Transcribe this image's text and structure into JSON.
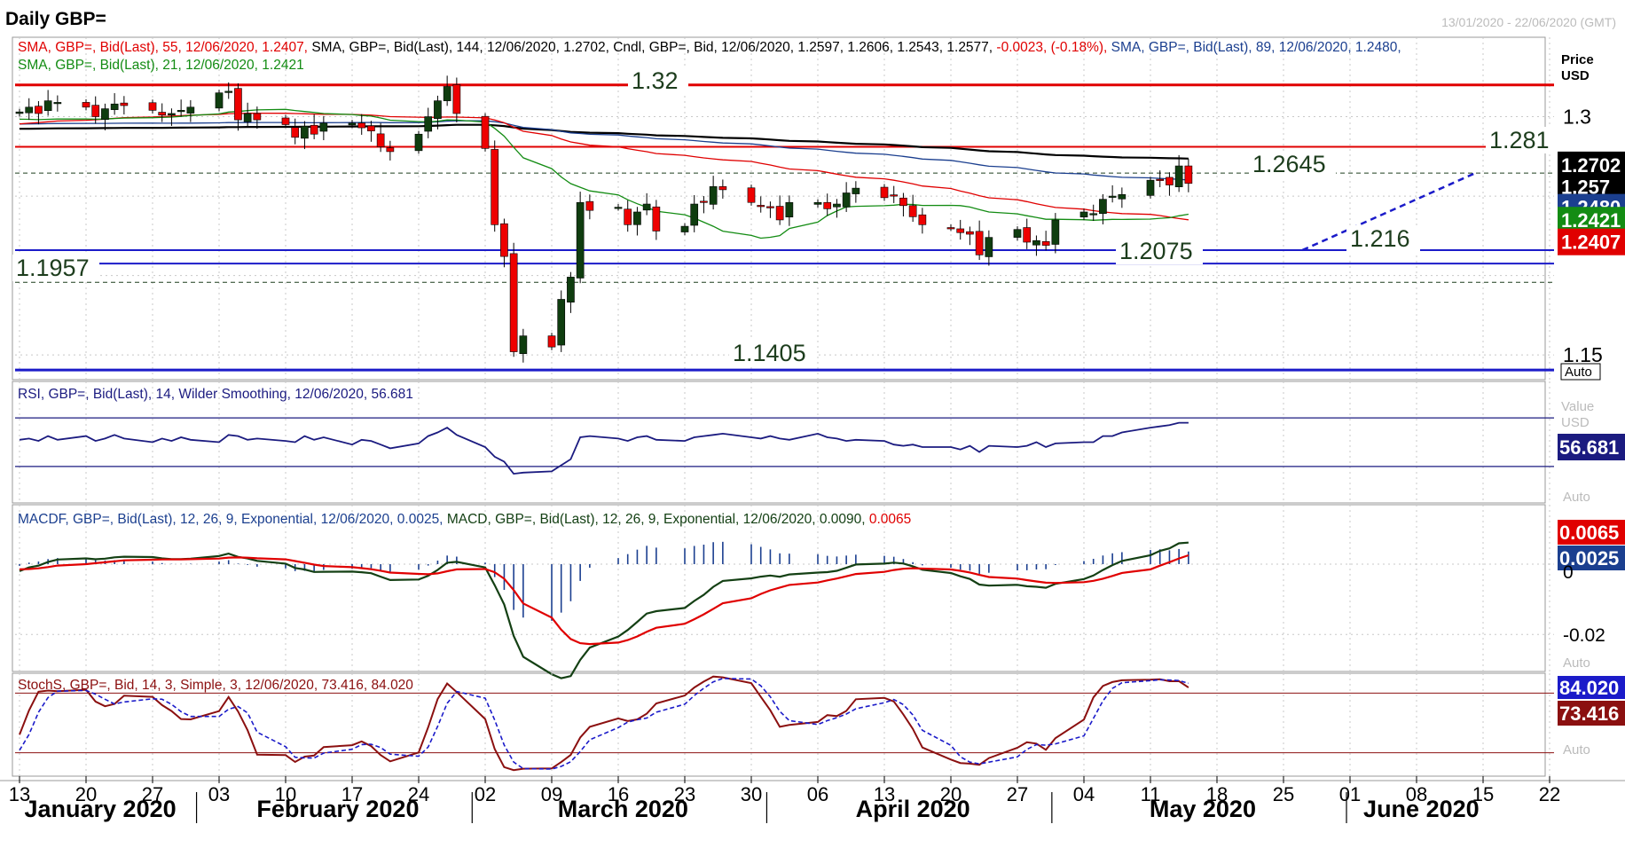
{
  "header": {
    "title": "Daily GBP=",
    "date_range": "13/01/2020 - 22/06/2020 (GMT)"
  },
  "price_panel": {
    "legend_line1": [
      {
        "text": "SMA, GBP=, Bid(Last),  55, 12/06/2020, 1.2407, ",
        "color": "#e00000"
      },
      {
        "text": "SMA, GBP=, Bid(Last),  144, 12/06/2020, 1.2702, ",
        "color": "#000000"
      },
      {
        "text": "Cndl, GBP=, Bid,  12/06/2020, 1.2597, 1.2606, 1.2543, 1.2577, ",
        "color": "#000000"
      },
      {
        "text": "-0.0023, (-0.18%), ",
        "color": "#e00000"
      },
      {
        "text": "SMA, GBP=, Bid(Last),  89, 12/06/2020, 1.2480, ",
        "color": "#1b3f8f"
      }
    ],
    "legend_line2": [
      {
        "text": "SMA, GBP=, Bid(Last),  21, 12/06/2020, 1.2421",
        "color": "#138c13"
      }
    ],
    "axis_header": {
      "line1": "Price",
      "line2": "USD"
    },
    "auto_label": "Auto",
    "level_labels": {
      "r132": "1.32",
      "r1281": "1.281",
      "r12645": "1.2645",
      "s1216": "1.216",
      "s12075": "1.2075",
      "s11957": "1.1957",
      "s11405": "1.1405"
    },
    "badges": {
      "sma144": {
        "text": "1.2702",
        "bg": "#000000"
      },
      "close": {
        "text": "1.257",
        "bg": "#000000"
      },
      "sma89": {
        "text": "1.2480",
        "bg": "#1b3f8f"
      },
      "sma21": {
        "text": "1.2421",
        "bg": "#138c13"
      },
      "sma55": {
        "text": "1.2407",
        "bg": "#e00000"
      }
    }
  },
  "rsi_panel": {
    "legend": "RSI, GBP=, Bid(Last),  14, Wilder Smoothing, 12/06/2020, 56.681",
    "axis_header": {
      "line1": "Value",
      "line2": "USD"
    },
    "badge": "56.681",
    "auto_label": "Auto"
  },
  "macd_panel": {
    "legend": [
      {
        "text": "MACDF, GBP=, Bid(Last),  12, 26, 9, Exponential, 12/06/2020, 0.0025, ",
        "color": "#1b3f8f"
      },
      {
        "text": "MACD, GBP=, Bid(Last),  12, 26, 9, Exponential, 12/06/2020, 0.0090, ",
        "color": "#144014"
      },
      {
        "text": "0.0065",
        "color": "#e00000"
      }
    ],
    "badges": {
      "signal": "0.0065",
      "hist": "0.0025"
    },
    "auto_label": "Auto"
  },
  "stoch_panel": {
    "legend": "StochS, GBP=, Bid,  14, 3, Simple, 3, 12/06/2020, 73.416, 84.020",
    "badges": {
      "d": "84.020",
      "k": "73.416"
    },
    "auto_label": "Auto"
  },
  "x_axis": {
    "day_ticks": [
      "13",
      "20",
      "27",
      "03",
      "10",
      "17",
      "24",
      "02",
      "09",
      "16",
      "23",
      "30",
      "06",
      "13",
      "20",
      "27",
      "04",
      "11",
      "18",
      "25",
      "01",
      "08",
      "15",
      "22"
    ],
    "months": [
      "January 2020",
      "February 2020",
      "March 2020",
      "April 2020",
      "May 2020",
      "June 2020"
    ]
  },
  "chart_data": [
    {
      "type": "candlestick",
      "title": "Daily GBP=",
      "x": [
        "2020-01-13",
        "2020-01-20",
        "2020-01-27",
        "2020-02-03",
        "2020-02-10",
        "2020-02-17",
        "2020-02-24",
        "2020-03-02",
        "2020-03-09",
        "2020-03-16",
        "2020-03-23",
        "2020-03-30",
        "2020-04-06",
        "2020-04-13",
        "2020-04-20",
        "2020-04-27",
        "2020-05-04",
        "2020-05-11",
        "2020-05-18",
        "2020-05-25",
        "2020-06-01",
        "2020-06-08",
        "2020-06-15",
        "2020-06-22"
      ],
      "ylim": [
        1.135,
        1.35
      ],
      "y_ticks": [
        1.15,
        1.3
      ],
      "grid": true,
      "last_candle": {
        "date": "12/06/2020",
        "open": 1.2597,
        "high": 1.2606,
        "low": 1.2543,
        "close": 1.2577,
        "change": -0.0023,
        "change_pct": "-0.18%"
      },
      "candles_close": [
        1.303,
        1.306,
        1.302,
        1.31,
        1.309,
        1.306,
        1.3,
        1.305,
        1.308,
        1.307,
        1.304,
        1.301,
        1.302,
        1.304,
        1.306,
        1.315,
        1.316,
        1.298,
        1.302,
        1.298,
        1.295,
        1.287,
        1.294,
        1.289,
        1.296,
        1.296,
        1.293,
        1.291,
        1.281,
        1.278,
        1.289,
        1.3,
        1.31,
        1.319,
        1.302,
        1.28,
        1.232,
        1.212,
        1.152,
        1.162,
        1.155,
        1.185,
        1.199,
        1.246,
        1.241,
        1.243,
        1.232,
        1.24,
        1.245,
        1.228,
        1.231,
        1.245,
        1.246,
        1.256,
        1.254,
        1.246,
        1.244,
        1.243,
        1.235,
        1.246,
        1.246,
        1.242,
        1.245,
        1.252,
        1.255,
        1.249,
        1.25,
        1.244,
        1.237,
        1.232,
        1.23,
        1.227,
        1.226,
        1.213,
        1.224,
        1.229,
        1.221,
        1.222,
        1.219,
        1.235,
        1.24,
        1.239,
        1.248,
        1.25,
        1.251,
        1.26,
        1.26,
        1.257,
        1.269,
        1.258
      ],
      "series": [
        {
          "name": "SMA 55",
          "color": "#e00000",
          "last": 1.2407
        },
        {
          "name": "SMA 144",
          "color": "#000000",
          "last": 1.2702
        },
        {
          "name": "SMA 89",
          "color": "#1b3f8f",
          "last": 1.248
        },
        {
          "name": "SMA 21",
          "color": "#138c13",
          "last": 1.2421
        }
      ],
      "levels": [
        {
          "value": 1.32,
          "color": "#e00000"
        },
        {
          "value": 1.281,
          "color": "#e00000"
        },
        {
          "value": 1.2645,
          "color": "#1d3d1d",
          "style": "dashed"
        },
        {
          "value": 1.216,
          "color": "#1b1bc9"
        },
        {
          "value": 1.2075,
          "color": "#1b1bc9"
        },
        {
          "value": 1.1957,
          "color": "#1d3d1d",
          "style": "dashed"
        },
        {
          "value": 1.1405,
          "color": "#1b1bc9"
        }
      ],
      "trendline": {
        "from": {
          "date": "2020-05-27",
          "value": 1.216
        },
        "to": {
          "date": "2020-06-15",
          "value": 1.264
        },
        "color": "#1b1bc9",
        "style": "dashed"
      }
    },
    {
      "type": "line",
      "title": "RSI, GBP=, Bid(Last), 14, Wilder Smoothing",
      "ylim": [
        0,
        100
      ],
      "bands": [
        70,
        30
      ],
      "series": [
        {
          "name": "RSI 14",
          "color": "#1b1b80",
          "last": 56.681,
          "values": [
            52,
            53,
            51,
            55,
            52,
            55,
            51,
            53,
            56,
            53,
            50,
            53,
            51,
            54,
            52,
            50,
            56,
            55,
            52,
            53,
            51,
            50,
            55,
            52,
            54,
            48,
            52,
            51,
            48,
            45,
            49,
            55,
            58,
            62,
            56,
            46,
            38,
            34,
            24,
            25,
            26,
            31,
            36,
            54,
            55,
            53,
            51,
            54,
            55,
            52,
            51,
            54,
            55,
            56,
            57,
            54,
            53,
            55,
            53,
            52,
            57,
            54,
            53,
            51,
            52,
            51,
            48,
            47,
            48,
            46,
            46,
            44,
            47,
            42,
            47,
            46,
            47,
            50,
            46,
            49,
            50,
            50,
            55,
            55,
            58,
            62,
            63,
            64,
            66,
            66,
            60,
            60
          ]
        }
      ]
    },
    {
      "type": "line",
      "title": "MACD, GBP=, Bid(Last), 12, 26, 9, Exponential",
      "ylim": [
        -0.03,
        0.012
      ],
      "y_ticks": [
        0,
        -0.02
      ],
      "series": [
        {
          "name": "MACD",
          "color": "#144014",
          "last": 0.009
        },
        {
          "name": "Signal",
          "color": "#e00000",
          "last": 0.0065
        },
        {
          "name": "MACDF histogram",
          "color": "#1b3f8f",
          "last": 0.0025
        }
      ]
    },
    {
      "type": "line",
      "title": "StochS, GBP=, Bid, 14, 3, Simple, 3",
      "ylim": [
        0,
        100
      ],
      "bands": [
        80,
        20
      ],
      "series": [
        {
          "name": "%K",
          "color": "#8b1010",
          "last": 73.416
        },
        {
          "name": "%D",
          "color": "#1b1bc9",
          "last": 84.02
        }
      ]
    }
  ]
}
